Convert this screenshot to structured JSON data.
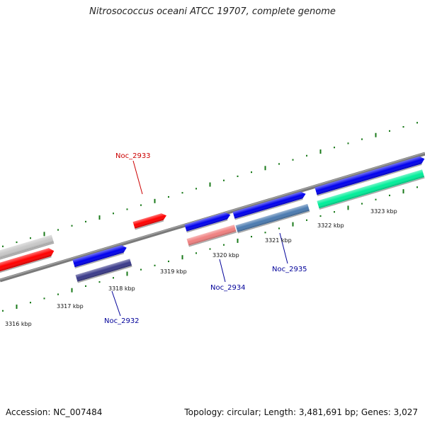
{
  "title": "Nitrosococcus oceani ATCC 19707, complete genome",
  "footer": {
    "accession": "Accession: NC_007484",
    "summary": "Topology: circular; Length: 3,481,691 bp; Genes: 3,027"
  },
  "scale": {
    "labels": [
      "3316 kbp",
      "3317 kbp",
      "3318 kbp",
      "3319 kbp",
      "3320 kbp",
      "3321 kbp",
      "3322 kbp",
      "3323 kbp"
    ],
    "tick_color": "#1a7a1a"
  },
  "backbone_color": "#7a7a7a",
  "genes": [
    {
      "label": "",
      "strand": "plus",
      "color": "#c8c8c8"
    },
    {
      "label": "",
      "strand": "plus",
      "color": "#ff0000"
    },
    {
      "label": "Noc_2933",
      "strand": "plus",
      "color": "#ff0000",
      "label_color": "#cc0000"
    },
    {
      "label": "",
      "strand": "plus",
      "color": "#0000ee"
    },
    {
      "label": "",
      "strand": "plus",
      "color": "#0000ee"
    },
    {
      "label": "",
      "strand": "plus",
      "color": "#0000ee"
    },
    {
      "label": "",
      "strand": "plus",
      "color": "#0000ee"
    },
    {
      "label": "",
      "strand": "minus",
      "color": "#00ee99"
    },
    {
      "label": "Noc_2932",
      "strand": "minus",
      "color": "#3a3a8a",
      "label_color": "#000099"
    },
    {
      "label": "Noc_2934",
      "strand": "minus",
      "color": "#f08080",
      "label_color": "#000099"
    },
    {
      "label": "Noc_2935",
      "strand": "minus",
      "color": "#4a7ab0",
      "label_color": "#000099"
    }
  ]
}
